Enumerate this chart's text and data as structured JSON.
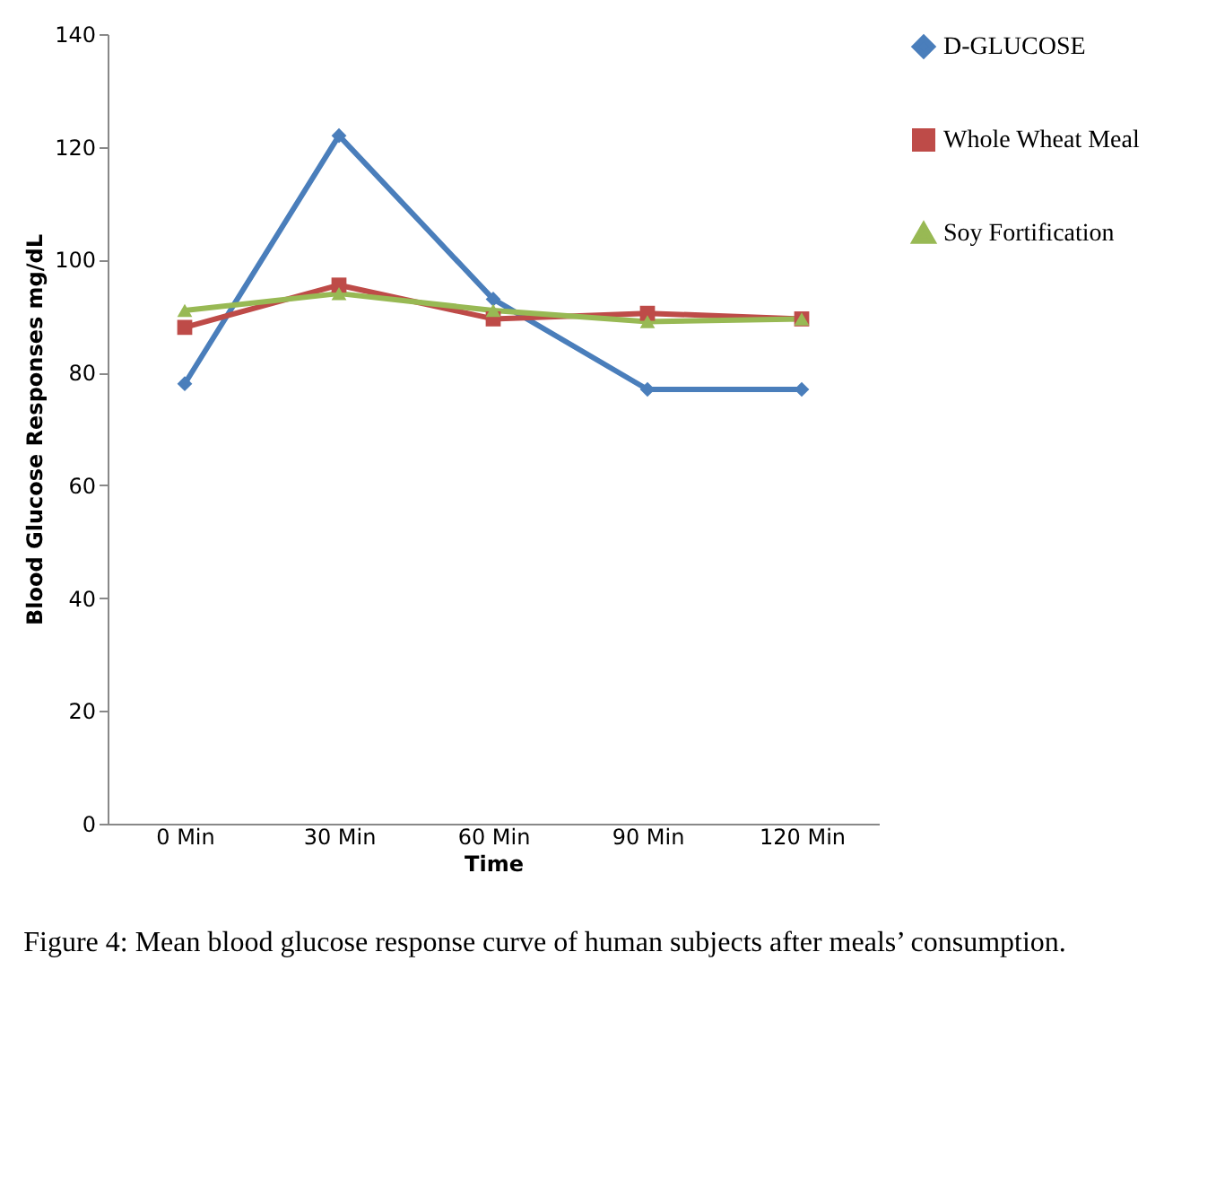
{
  "chart_data": {
    "type": "line",
    "title": "Figure 4: Mean blood glucose response curve of human subjects after meals’ consumption.",
    "xlabel": "Time",
    "ylabel": "Blood Glucose Responses mg/dL",
    "categories": [
      "0 Min",
      "30 Min",
      "60 Min",
      "90 Min",
      "120 Min"
    ],
    "series": [
      {
        "name": "D-GLUCOSE",
        "color": "#4a7ebb",
        "marker": "diamond",
        "values": [
          78,
          122,
          93,
          77,
          77
        ]
      },
      {
        "name": "Whole Wheat Meal",
        "color": "#be4b48",
        "marker": "square",
        "values": [
          88,
          95.5,
          89.5,
          90.5,
          89.5
        ]
      },
      {
        "name": "Soy Fortification",
        "color": "#98b954",
        "marker": "triangle",
        "values": [
          91,
          94,
          91,
          89,
          89.5
        ]
      }
    ],
    "ylim": [
      0,
      140
    ],
    "yticks": [
      0,
      20,
      40,
      60,
      80,
      100,
      120,
      140
    ],
    "grid": false,
    "legend": "right"
  }
}
